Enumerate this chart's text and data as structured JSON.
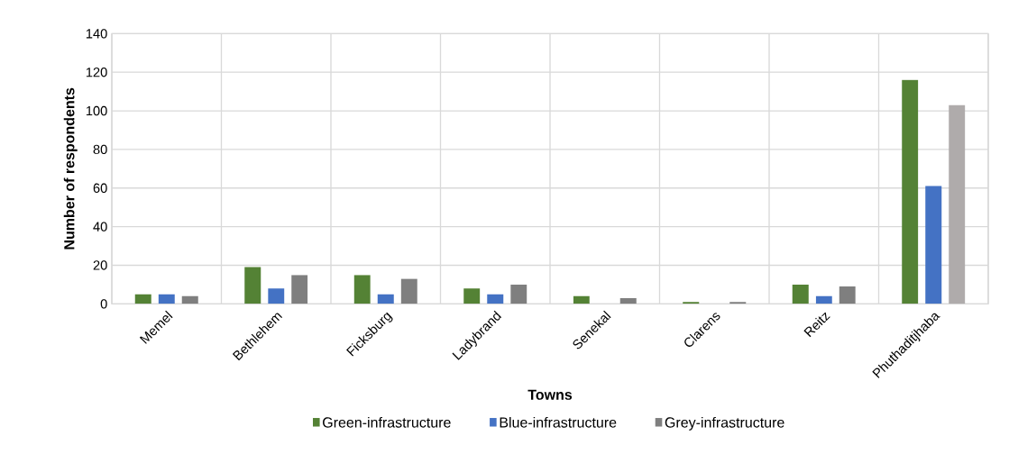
{
  "chart_data": {
    "type": "bar",
    "xlabel": "Towns",
    "ylabel": "Number of respondents",
    "categories": [
      "Memel",
      "Bethlehem",
      "Ficksburg",
      "Ladybrand",
      "Senekal",
      "Clarens",
      "Reitz",
      "Phuthaditjhaba"
    ],
    "series": [
      {
        "name": "Green-infrastructure",
        "color": "#548235",
        "values": [
          5,
          19,
          15,
          8,
          4,
          1,
          10,
          116
        ]
      },
      {
        "name": "Blue-infrastructure",
        "color": "#4472c4",
        "values": [
          5,
          8,
          5,
          5,
          0,
          0,
          4,
          61
        ]
      },
      {
        "name": "Grey-infrastructure",
        "color": "#7f7f7f",
        "colors": [
          "#7f7f7f",
          "#7f7f7f",
          "#7f7f7f",
          "#7f7f7f",
          "#7f7f7f",
          "#7f7f7f",
          "#7f7f7f",
          "#afabab"
        ],
        "values": [
          4,
          15,
          13,
          10,
          3,
          1,
          9,
          103
        ]
      }
    ],
    "ylim": [
      0,
      140
    ],
    "yticks": [
      0,
      20,
      40,
      60,
      80,
      100,
      120,
      140
    ],
    "grid": true,
    "legend": "bottom"
  }
}
